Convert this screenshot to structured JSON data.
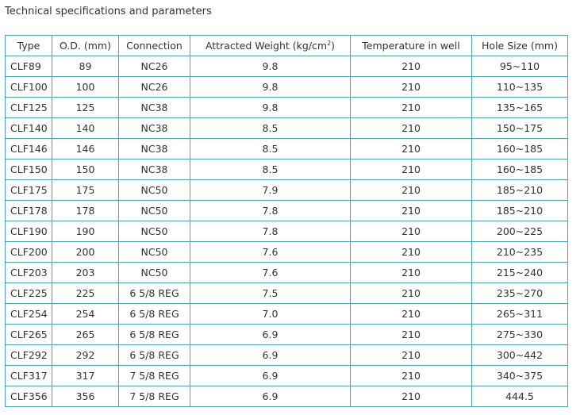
{
  "heading": "Technical specifications and parameters",
  "columns": {
    "type": "Type",
    "od": "O.D. (mm)",
    "connection": "Connection",
    "weight_main": "Attracted Weight (kg/cm",
    "weight_sup": "2",
    "weight_end": ")",
    "temperature": "Temperature in well",
    "hole": "Hole Size (mm)"
  },
  "rows": [
    {
      "type": "CLF89",
      "od": "89",
      "connection": "NC26",
      "weight": "9.8",
      "temperature": "210",
      "hole": "95~110"
    },
    {
      "type": "CLF100",
      "od": "100",
      "connection": "NC26",
      "weight": "9.8",
      "temperature": "210",
      "hole": "110~135"
    },
    {
      "type": "CLF125",
      "od": "125",
      "connection": "NC38",
      "weight": "9.8",
      "temperature": "210",
      "hole": "135~165"
    },
    {
      "type": "CLF140",
      "od": "140",
      "connection": "NC38",
      "weight": "8.5",
      "temperature": "210",
      "hole": "150~175"
    },
    {
      "type": "CLF146",
      "od": "146",
      "connection": "NC38",
      "weight": "8.5",
      "temperature": "210",
      "hole": "160~185"
    },
    {
      "type": "CLF150",
      "od": "150",
      "connection": "NC38",
      "weight": "8.5",
      "temperature": "210",
      "hole": "160~185"
    },
    {
      "type": "CLF175",
      "od": "175",
      "connection": "NC50",
      "weight": "7.9",
      "temperature": "210",
      "hole": "185~210"
    },
    {
      "type": "CLF178",
      "od": "178",
      "connection": "NC50",
      "weight": "7.8",
      "temperature": "210",
      "hole": "185~210"
    },
    {
      "type": "CLF190",
      "od": "190",
      "connection": "NC50",
      "weight": "7.8",
      "temperature": "210",
      "hole": "200~225"
    },
    {
      "type": "CLF200",
      "od": "200",
      "connection": "NC50",
      "weight": "7.6",
      "temperature": "210",
      "hole": "210~235"
    },
    {
      "type": "CLF203",
      "od": "203",
      "connection": "NC50",
      "weight": "7.6",
      "temperature": "210",
      "hole": "215~240"
    },
    {
      "type": "CLF225",
      "od": "225",
      "connection": "6 5/8 REG",
      "weight": "7.5",
      "temperature": "210",
      "hole": "235~270"
    },
    {
      "type": "CLF254",
      "od": "254",
      "connection": "6 5/8 REG",
      "weight": "7.0",
      "temperature": "210",
      "hole": "265~311"
    },
    {
      "type": "CLF265",
      "od": "265",
      "connection": "6 5/8 REG",
      "weight": "6.9",
      "temperature": "210",
      "hole": "275~330"
    },
    {
      "type": "CLF292",
      "od": "292",
      "connection": "6 5/8 REG",
      "weight": "6.9",
      "temperature": "210",
      "hole": "300~442"
    },
    {
      "type": "CLF317",
      "od": "317",
      "connection": "7 5/8 REG",
      "weight": "6.9",
      "temperature": "210",
      "hole": "340~375"
    },
    {
      "type": "CLF356",
      "od": "356",
      "connection": "7 5/8 REG",
      "weight": "6.9",
      "temperature": "210",
      "hole": "444.5"
    }
  ]
}
